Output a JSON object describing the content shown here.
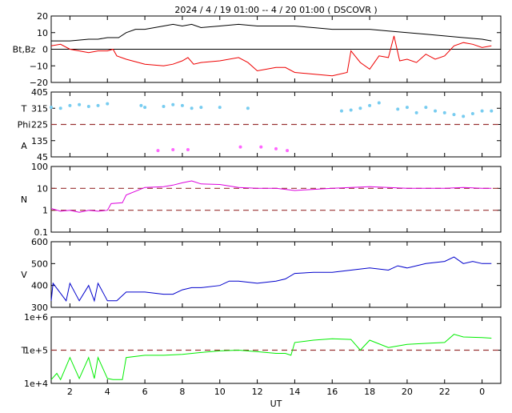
{
  "title": "2024 /  4 / 19   01:00  --  4 / 20   01:00 ( DSCOVR )",
  "xlabel": "UT",
  "x_ticks": [
    "2",
    "4",
    "6",
    "8",
    "10",
    "12",
    "14",
    "16",
    "18",
    "20",
    "22",
    "0"
  ],
  "x_tick_hours": [
    2,
    4,
    6,
    8,
    10,
    12,
    14,
    16,
    18,
    20,
    22,
    24
  ],
  "x_range_hours": [
    1.0,
    25.0
  ],
  "colors": {
    "bt": "#000000",
    "bz": "#ee0000",
    "theta": "#77ccf0",
    "phi": "#ff66ff",
    "flag": "#aaaaaa",
    "density": "#dd00dd",
    "speed": "#0000cc",
    "temperature": "#00ee00",
    "dash": "#993333",
    "axis": "#000000"
  },
  "chart_data": [
    {
      "type": "line",
      "panel": "magnetic-field",
      "ylabel": "Bt,Bz",
      "ylim": [
        -20,
        20
      ],
      "y_ticks": [
        "20",
        "10",
        "0",
        "−10",
        "−20"
      ],
      "y_tick_values": [
        20,
        10,
        0,
        -10,
        -20
      ],
      "zero_line": 0,
      "series": [
        {
          "key": "bt",
          "x": [
            1.0,
            2.0,
            3.0,
            3.5,
            4.0,
            4.6,
            5.0,
            5.5,
            6.0,
            7.0,
            7.5,
            8.0,
            8.5,
            9.0,
            10.0,
            11.0,
            12.0,
            13.0,
            14.0,
            15.0,
            16.0,
            17.0,
            18.0,
            19.0,
            20.0,
            21.0,
            22.0,
            23.0,
            24.0,
            24.5
          ],
          "y": [
            5,
            5,
            6,
            6,
            7,
            7,
            10,
            12,
            12,
            14,
            15,
            14,
            15,
            13,
            14,
            15,
            14,
            14,
            14,
            13,
            12,
            12,
            12,
            11,
            10,
            9,
            8,
            7,
            6,
            5
          ]
        },
        {
          "key": "bz",
          "x": [
            1.0,
            1.5,
            2.0,
            2.5,
            3.0,
            3.5,
            4.0,
            4.3,
            4.5,
            5.0,
            6.0,
            7.0,
            7.5,
            8.0,
            8.3,
            8.6,
            9.0,
            10.0,
            11.0,
            11.5,
            12.0,
            12.5,
            13.0,
            13.5,
            14.0,
            15.0,
            16.0,
            16.8,
            17.0,
            17.5,
            18.0,
            18.5,
            19.0,
            19.3,
            19.6,
            20.0,
            20.5,
            21.0,
            21.5,
            22.0,
            22.5,
            23.0,
            23.5,
            24.0,
            24.5
          ],
          "y": [
            2,
            3,
            0,
            -1,
            -2,
            -1,
            -1,
            0,
            -4,
            -6,
            -9,
            -10,
            -9,
            -7,
            -5,
            -9,
            -8,
            -7,
            -5,
            -8,
            -13,
            -12,
            -11,
            -11,
            -14,
            -15,
            -16,
            -14,
            -1,
            -8,
            -12,
            -4,
            -5,
            8,
            -7,
            -6,
            -8,
            -3,
            -6,
            -4,
            2,
            4,
            3,
            1,
            2
          ]
        }
      ]
    },
    {
      "type": "scatter",
      "panel": "theta-phi",
      "ylabel_top": "T",
      "ylabel_mid": "Phi",
      "ylabel_bottom": "A",
      "ylim": [
        45,
        405
      ],
      "y_ticks": [
        "405",
        "315",
        "225",
        "135",
        "45"
      ],
      "y_tick_values": [
        405,
        315,
        225,
        135,
        45
      ],
      "dashed_lines": [
        225
      ],
      "series": [
        {
          "key": "theta",
          "x": [
            1.0,
            1.5,
            2.0,
            2.5,
            3.0,
            3.5,
            4.0,
            5.8,
            6.0,
            7.0,
            7.5,
            8.0,
            8.5,
            9.0,
            10.0,
            11.5,
            16.5,
            17.0,
            17.5,
            18.0,
            18.5,
            19.5,
            20.0,
            20.5,
            21.0,
            21.5,
            22.0,
            22.5,
            23.0,
            23.5,
            24.0,
            24.5
          ],
          "y": [
            320,
            315,
            330,
            335,
            325,
            330,
            340,
            330,
            320,
            325,
            335,
            330,
            315,
            320,
            320,
            315,
            300,
            305,
            315,
            330,
            345,
            310,
            320,
            290,
            320,
            300,
            290,
            280,
            270,
            285,
            300,
            300
          ]
        },
        {
          "key": "phi",
          "x": [
            6.7,
            7.5,
            8.3,
            11.1,
            12.2,
            13.0,
            13.6
          ],
          "y": [
            80,
            85,
            85,
            100,
            100,
            90,
            80
          ]
        }
      ]
    },
    {
      "type": "line",
      "panel": "density",
      "ylabel": "N",
      "yscale": "log",
      "ylim": [
        0.1,
        100
      ],
      "y_ticks": [
        "100",
        "10",
        "1",
        "0.1"
      ],
      "y_tick_values": [
        100,
        10,
        1,
        0.1
      ],
      "dashed_lines": [
        10,
        1
      ],
      "series": [
        {
          "key": "density",
          "x": [
            1.0,
            1.5,
            2.0,
            2.5,
            3.0,
            3.5,
            4.0,
            4.2,
            4.8,
            5.0,
            6.0,
            7.0,
            7.5,
            8.0,
            8.5,
            9.0,
            10.0,
            11.0,
            12.0,
            13.0,
            14.0,
            15.0,
            16.0,
            17.0,
            18.0,
            19.0,
            20.0,
            21.0,
            22.0,
            23.0,
            24.0,
            24.5
          ],
          "y": [
            1.2,
            0.9,
            1.0,
            0.8,
            1.0,
            0.9,
            1.0,
            2.0,
            2.2,
            5.0,
            11,
            12,
            14,
            18,
            22,
            16,
            15,
            11,
            10,
            10,
            8,
            9,
            10,
            11,
            12,
            11,
            10,
            10,
            10,
            11,
            10,
            10
          ]
        }
      ]
    },
    {
      "type": "line",
      "panel": "speed",
      "ylabel": "V",
      "ylim": [
        300,
        600
      ],
      "y_ticks": [
        "600",
        "500",
        "400",
        "300"
      ],
      "y_tick_values": [
        600,
        500,
        400,
        300
      ],
      "series": [
        {
          "key": "speed",
          "x": [
            1.0,
            1.1,
            1.8,
            2.0,
            2.5,
            3.0,
            3.3,
            3.5,
            4.0,
            4.5,
            5.0,
            6.0,
            7.0,
            7.5,
            8.0,
            8.5,
            9.0,
            10.0,
            10.5,
            11.0,
            12.0,
            13.0,
            13.5,
            14.0,
            15.0,
            16.0,
            17.0,
            18.0,
            19.0,
            19.5,
            20.0,
            21.0,
            22.0,
            22.5,
            23.0,
            23.5,
            24.0,
            24.5
          ],
          "y": [
            330,
            410,
            330,
            410,
            330,
            400,
            330,
            410,
            330,
            330,
            370,
            370,
            360,
            360,
            380,
            390,
            390,
            400,
            420,
            420,
            410,
            420,
            430,
            455,
            460,
            460,
            470,
            480,
            470,
            490,
            480,
            500,
            510,
            530,
            500,
            510,
            500,
            500
          ]
        }
      ]
    },
    {
      "type": "line",
      "panel": "temperature",
      "ylabel": "T",
      "yscale": "log",
      "ylim": [
        10000,
        1000000
      ],
      "y_ticks": [
        "1e+6",
        "1e+5",
        "1e+4"
      ],
      "y_tick_values": [
        1000000,
        100000,
        10000
      ],
      "dashed_lines": [
        100000
      ],
      "series": [
        {
          "key": "temperature",
          "x": [
            1.0,
            1.3,
            1.5,
            2.0,
            2.5,
            3.0,
            3.3,
            3.5,
            4.0,
            4.3,
            4.8,
            5.0,
            6.0,
            7.0,
            8.0,
            9.0,
            10.0,
            11.0,
            12.0,
            13.0,
            13.5,
            13.8,
            14.0,
            15.0,
            16.0,
            17.0,
            17.5,
            18.0,
            19.0,
            20.0,
            21.0,
            22.0,
            22.5,
            23.0,
            24.0,
            24.5
          ],
          "y": [
            13000,
            20000,
            13000,
            60000,
            14000,
            60000,
            14000,
            60000,
            14000,
            13000,
            13000,
            60000,
            70000,
            70000,
            75000,
            85000,
            95000,
            100000,
            90000,
            80000,
            80000,
            70000,
            170000,
            200000,
            220000,
            210000,
            100000,
            200000,
            120000,
            150000,
            160000,
            170000,
            300000,
            250000,
            240000,
            230000
          ]
        }
      ]
    }
  ]
}
